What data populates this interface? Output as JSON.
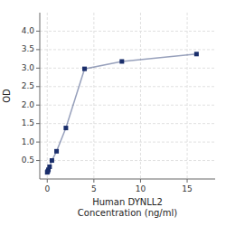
{
  "chart_data": {
    "type": "line",
    "x": [
      0,
      0.0625,
      0.125,
      0.25,
      0.5,
      1.0,
      2.0,
      4.0,
      8.0,
      16.0
    ],
    "values": [
      0.18,
      0.21,
      0.25,
      0.33,
      0.5,
      0.75,
      1.38,
      2.98,
      3.18,
      3.38
    ],
    "color": "#1a2e6b",
    "marker": "square",
    "xlabel": [
      "Human DYNLL2",
      "Concentration (ng/ml)"
    ],
    "ylabel": "OD",
    "xlim": [
      -0.8,
      18
    ],
    "ylim": [
      0.0,
      4.5
    ],
    "xticks": [
      0,
      5,
      10,
      15
    ],
    "yticks": [
      0.5,
      1.0,
      1.5,
      2.0,
      2.5,
      3.0,
      3.5,
      4.0
    ],
    "grid": true
  }
}
